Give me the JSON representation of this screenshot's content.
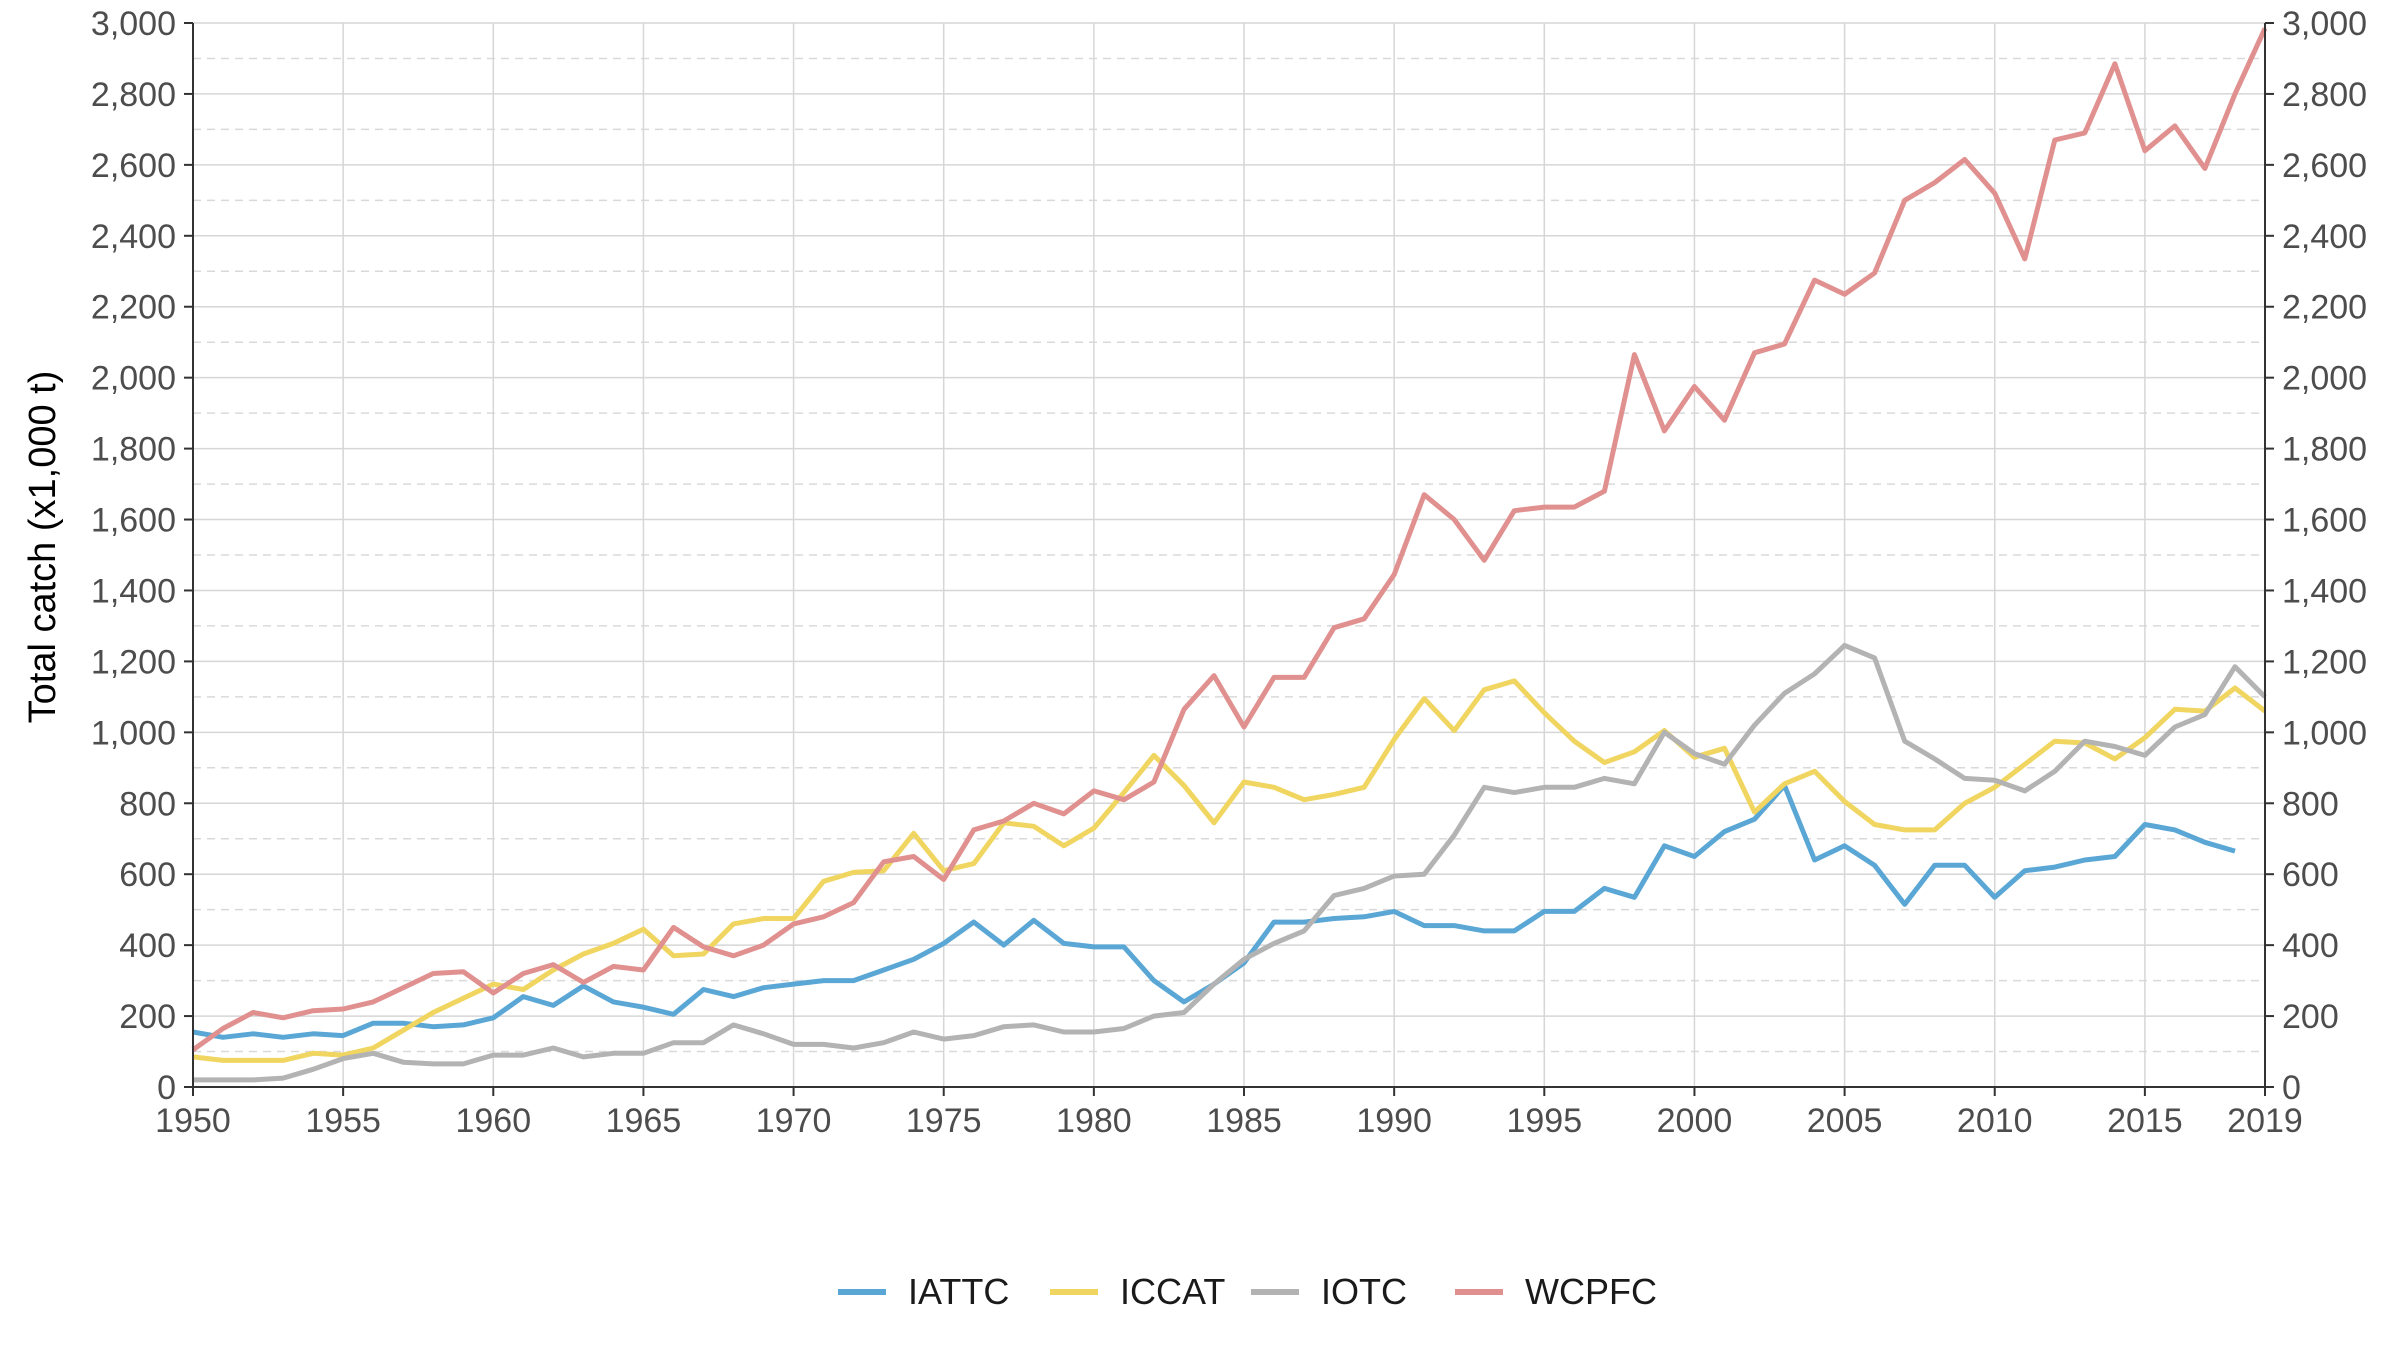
{
  "chart_data": {
    "type": "line",
    "title": "",
    "xlabel": "",
    "ylabel": "Total catch (x1,000 t)",
    "xlim": [
      1950,
      2019
    ],
    "ylim": [
      0,
      3000
    ],
    "x_ticks": [
      1950,
      1955,
      1960,
      1965,
      1970,
      1975,
      1980,
      1985,
      1990,
      1995,
      2000,
      2005,
      2010,
      2015,
      2019
    ],
    "y_ticks": [
      0,
      200,
      400,
      600,
      800,
      1000,
      1200,
      1400,
      1600,
      1800,
      2000,
      2200,
      2400,
      2600,
      2800,
      3000
    ],
    "y_tick_labels": [
      "0",
      "200",
      "400",
      "600",
      "800",
      "1,000",
      "1,200",
      "1,400",
      "1,600",
      "1,800",
      "2,000",
      "2,200",
      "2,400",
      "2,600",
      "2,800",
      "3,000"
    ],
    "secondary_y_axis": true,
    "grid": true,
    "legend_position": "bottom",
    "x": [
      1950,
      1951,
      1952,
      1953,
      1954,
      1955,
      1956,
      1957,
      1958,
      1959,
      1960,
      1961,
      1962,
      1963,
      1964,
      1965,
      1966,
      1967,
      1968,
      1969,
      1970,
      1971,
      1972,
      1973,
      1974,
      1975,
      1976,
      1977,
      1978,
      1979,
      1980,
      1981,
      1982,
      1983,
      1984,
      1985,
      1986,
      1987,
      1988,
      1989,
      1990,
      1991,
      1992,
      1993,
      1994,
      1995,
      1996,
      1997,
      1998,
      1999,
      2000,
      2001,
      2002,
      2003,
      2004,
      2005,
      2006,
      2007,
      2008,
      2009,
      2010,
      2011,
      2012,
      2013,
      2014,
      2015,
      2016,
      2017,
      2018,
      2019
    ],
    "series": [
      {
        "name": "IATTC",
        "color": "#5aa7d6",
        "values": [
          155,
          140,
          150,
          140,
          150,
          145,
          180,
          180,
          170,
          175,
          195,
          255,
          230,
          285,
          240,
          225,
          205,
          275,
          255,
          280,
          290,
          300,
          300,
          330,
          360,
          405,
          465,
          400,
          470,
          405,
          395,
          395,
          300,
          240,
          290,
          350,
          465,
          465,
          475,
          480,
          495,
          455,
          455,
          440,
          440,
          495,
          495,
          560,
          535,
          680,
          650,
          720,
          755,
          850,
          640,
          680,
          625,
          515,
          625,
          625,
          535,
          610,
          620,
          640,
          650,
          740,
          725,
          690,
          665,
          null
        ]
      },
      {
        "name": "ICCAT",
        "color": "#f0d560",
        "values": [
          85,
          75,
          75,
          75,
          95,
          90,
          110,
          160,
          210,
          250,
          290,
          275,
          330,
          375,
          405,
          445,
          370,
          375,
          460,
          475,
          475,
          580,
          605,
          610,
          715,
          610,
          630,
          745,
          735,
          680,
          730,
          830,
          935,
          850,
          745,
          860,
          845,
          810,
          825,
          845,
          980,
          1095,
          1005,
          1120,
          1145,
          1055,
          975,
          915,
          945,
          1005,
          930,
          955,
          775,
          855,
          890,
          805,
          740,
          725,
          725,
          800,
          845,
          910,
          975,
          970,
          925,
          985,
          1065,
          1060,
          1125,
          1060
        ]
      },
      {
        "name": "IOTC",
        "color": "#b3b3b3",
        "values": [
          20,
          20,
          20,
          25,
          50,
          80,
          95,
          70,
          65,
          65,
          90,
          90,
          110,
          85,
          95,
          95,
          125,
          125,
          175,
          150,
          120,
          120,
          110,
          125,
          155,
          135,
          145,
          170,
          175,
          155,
          155,
          165,
          200,
          210,
          290,
          360,
          405,
          440,
          540,
          560,
          595,
          600,
          710,
          845,
          830,
          845,
          845,
          870,
          855,
          1000,
          940,
          910,
          1020,
          1110,
          1165,
          1245,
          1210,
          975,
          925,
          870,
          865,
          835,
          890,
          975,
          960,
          935,
          1015,
          1050,
          1185,
          1100
        ]
      },
      {
        "name": "WCPFC",
        "color": "#e0908f",
        "values": [
          105,
          165,
          210,
          195,
          215,
          220,
          240,
          280,
          320,
          325,
          265,
          320,
          345,
          295,
          340,
          330,
          450,
          395,
          370,
          400,
          460,
          480,
          520,
          635,
          650,
          585,
          725,
          750,
          800,
          770,
          835,
          810,
          860,
          1065,
          1160,
          1015,
          1155,
          1155,
          1295,
          1320,
          1445,
          1670,
          1600,
          1485,
          1625,
          1635,
          1635,
          1680,
          2065,
          1850,
          1975,
          1880,
          2070,
          2095,
          2275,
          2235,
          2295,
          2500,
          2550,
          2615,
          2520,
          2335,
          2670,
          2690,
          2885,
          2640,
          2710,
          2590,
          2800,
          2985
        ]
      }
    ]
  }
}
